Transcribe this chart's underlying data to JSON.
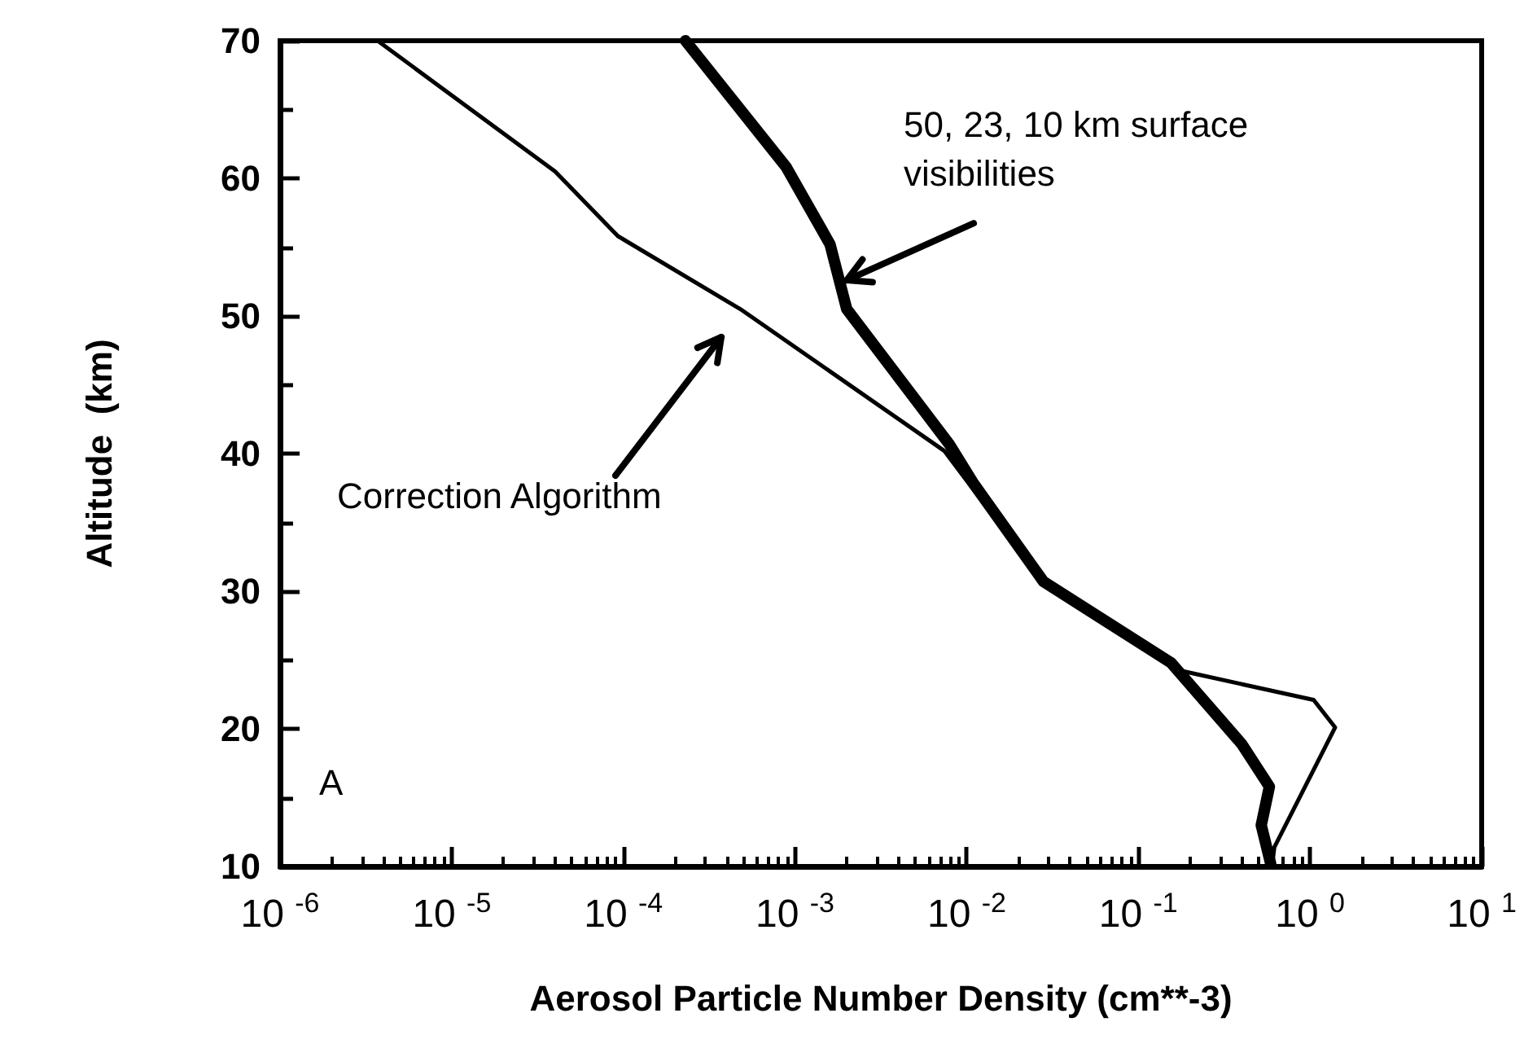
{
  "chart_data": {
    "type": "line",
    "xlabel": "Aerosol Particle Number Density (cm**-3)",
    "ylabel": "Altitude  (km)",
    "log": "x",
    "xlim": [
      1e-06,
      10
    ],
    "xticks": [
      {
        "value": 1e-06,
        "label": "10$^{-6}$"
      },
      {
        "value": 1e-05,
        "label": "10$^{-5}$"
      },
      {
        "value": 0.0001,
        "label": "10$^{-4}$"
      },
      {
        "value": 0.001,
        "label": "10$^{-3}$"
      },
      {
        "value": 0.01,
        "label": "10$^{-2}$"
      },
      {
        "value": 0.1,
        "label": "10$^{-1}$"
      },
      {
        "value": 1,
        "label": "10$^{0}$"
      },
      {
        "value": 10,
        "label": "10$^{1}$"
      }
    ],
    "ylim": [
      10,
      70
    ],
    "yticks": [
      10,
      20,
      30,
      40,
      50,
      60,
      70
    ],
    "grid": false,
    "marker": "none",
    "line_style": "solid",
    "series": [
      {
        "color": "#000000",
        "x": [
          0.00023,
          0.00089,
          0.0016,
          0.002,
          0.0079,
          0.011,
          0.028,
          0.155,
          0.4,
          0.58,
          0.52,
          0.59
        ],
        "values": [
          70,
          60.8,
          55.2,
          50.5,
          40.7,
          37.8,
          30.7,
          24.8,
          18.9,
          15.8,
          13,
          10.2
        ]
      },
      {
        "color": "#000000",
        "x": [
          3.7e-06,
          4e-05,
          9.3e-05,
          0.00048,
          0.0074,
          0.028,
          0.18,
          1.05,
          1.4,
          1,
          0.62,
          0.6
        ],
        "values": [
          70,
          60.5,
          55.8,
          50.5,
          40.2,
          30.6,
          24.2,
          22.1,
          20.1,
          16.5,
          11.4,
          10
        ]
      }
    ],
    "annotations": [
      {
        "text": "50, 23, 10 km surface visibilities",
        "x": 0.002,
        "y": 52.6
      },
      "Correction Algorithm",
      "A"
    ]
  }
}
